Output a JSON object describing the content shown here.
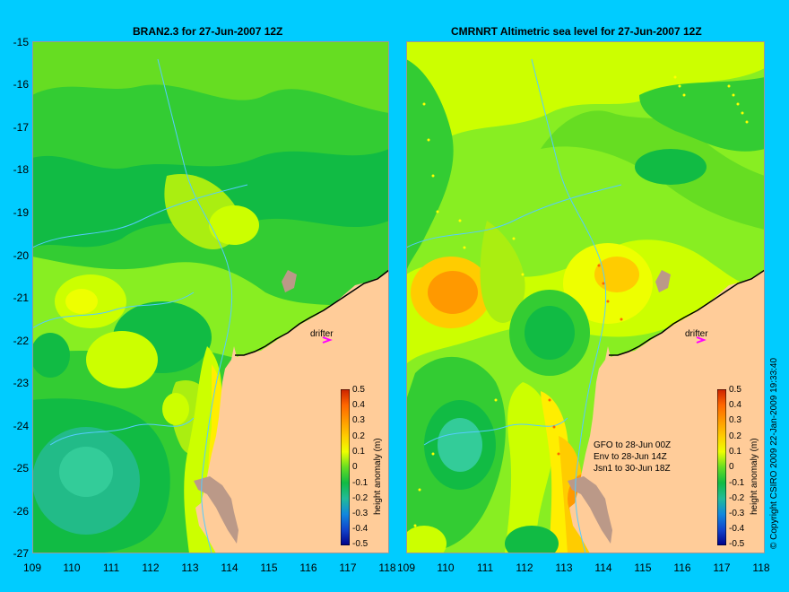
{
  "left_panel": {
    "title": "BRAN2.3 for 27-Jun-2007 12Z",
    "drifter_label": "drifter"
  },
  "right_panel": {
    "title": "CMRNRT Altimetric sea level  for 27-Jun-2007 12Z",
    "drifter_label": "drifter",
    "obs_notes": [
      "GFO to 28-Jun 00Z",
      "Env to 28-Jun 14Z",
      "Jsn1 to 30-Jun 18Z"
    ]
  },
  "y_ticks": [
    "-15",
    "-16",
    "-17",
    "-18",
    "-19",
    "-20",
    "-21",
    "-22",
    "-23",
    "-24",
    "-25",
    "-26",
    "-27"
  ],
  "x_ticks": [
    "109",
    "110",
    "111",
    "112",
    "113",
    "114",
    "115",
    "116",
    "117",
    "118"
  ],
  "colorbar": {
    "title": "height anomaly (m)",
    "labels": [
      "0.5",
      "0.4",
      "0.3",
      "0.2",
      "0.1",
      "0",
      "-0.1",
      "-0.2",
      "-0.3",
      "-0.4",
      "-0.5"
    ]
  },
  "copyright": "© Copyright CSIRO 2009  22-Jan-2009 19:33:40",
  "colors": {
    "background": "#00ccff",
    "land": "#ffcc99",
    "drifter_marker": "#ff00ff"
  }
}
